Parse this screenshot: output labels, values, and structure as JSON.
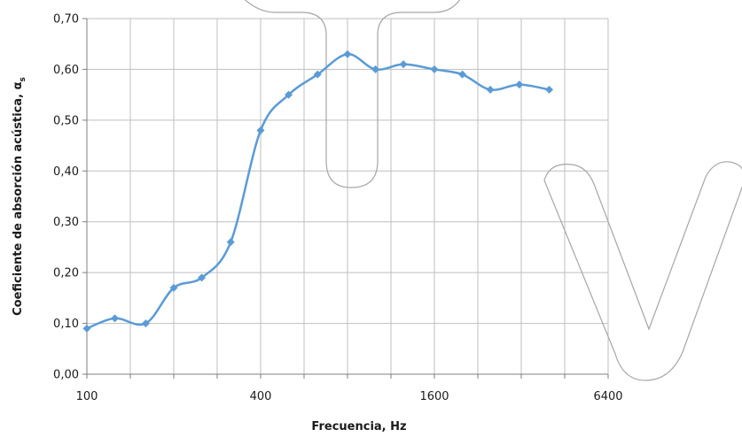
{
  "chart_data": {
    "type": "line",
    "title": "",
    "xlabel": "Frecuencia,  Hz",
    "ylabel": "Coeficiente de absorción  acústica,  α",
    "ylabel_subscript": "s",
    "x_scale": "log2",
    "xlim": [
      100,
      6400
    ],
    "ylim": [
      0,
      0.7
    ],
    "x_ticks": [
      100,
      400,
      1600,
      6400
    ],
    "x_tick_labels": [
      "100",
      "400",
      "1600",
      "6400"
    ],
    "y_ticks": [
      0,
      0.1,
      0.2,
      0.3,
      0.4,
      0.5,
      0.6,
      0.7
    ],
    "y_tick_labels": [
      "0,00",
      "0,10",
      "0,20",
      "0,30",
      "0,40",
      "0,50",
      "0,60",
      "0,70"
    ],
    "grid": true,
    "legend": "none",
    "series": [
      {
        "color": "#5b9bd5",
        "marker": "diamond",
        "x": [
          100,
          125,
          160,
          200,
          250,
          315,
          400,
          500,
          630,
          800,
          1000,
          1250,
          1600,
          2000,
          2500,
          3150,
          4000
        ],
        "y": [
          0.09,
          0.11,
          0.1,
          0.17,
          0.19,
          0.26,
          0.48,
          0.55,
          0.59,
          0.63,
          0.6,
          0.61,
          0.6,
          0.59,
          0.56,
          0.57,
          0.56
        ]
      }
    ]
  },
  "watermark": {
    "color": "#a6a6a6"
  }
}
